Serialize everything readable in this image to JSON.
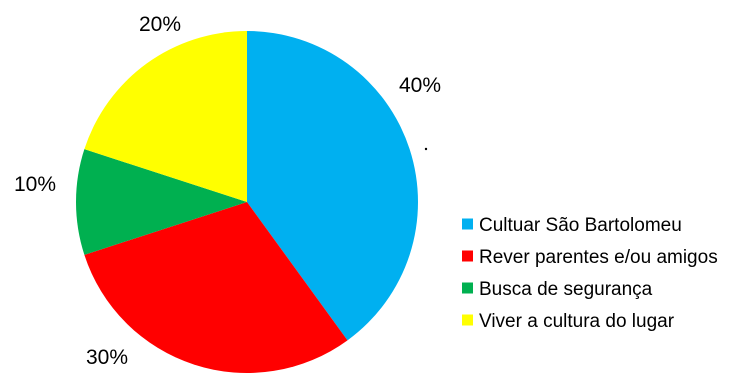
{
  "chart_data": {
    "type": "pie",
    "title": "",
    "unit": "%",
    "legend_position": "right",
    "slices": [
      {
        "label": "Cultuar São Bartolomeu",
        "value": 40,
        "display": "40%",
        "color": "#00B0F0"
      },
      {
        "label": "Rever parentes e/ou amigos",
        "value": 30,
        "display": "30%",
        "color": "#FF0000"
      },
      {
        "label": "Busca de segurança",
        "value": 10,
        "display": "10%",
        "color": "#00B050"
      },
      {
        "label": "Viver a cultura do lugar",
        "value": 20,
        "display": "20%",
        "color": "#FFFF00"
      }
    ]
  }
}
